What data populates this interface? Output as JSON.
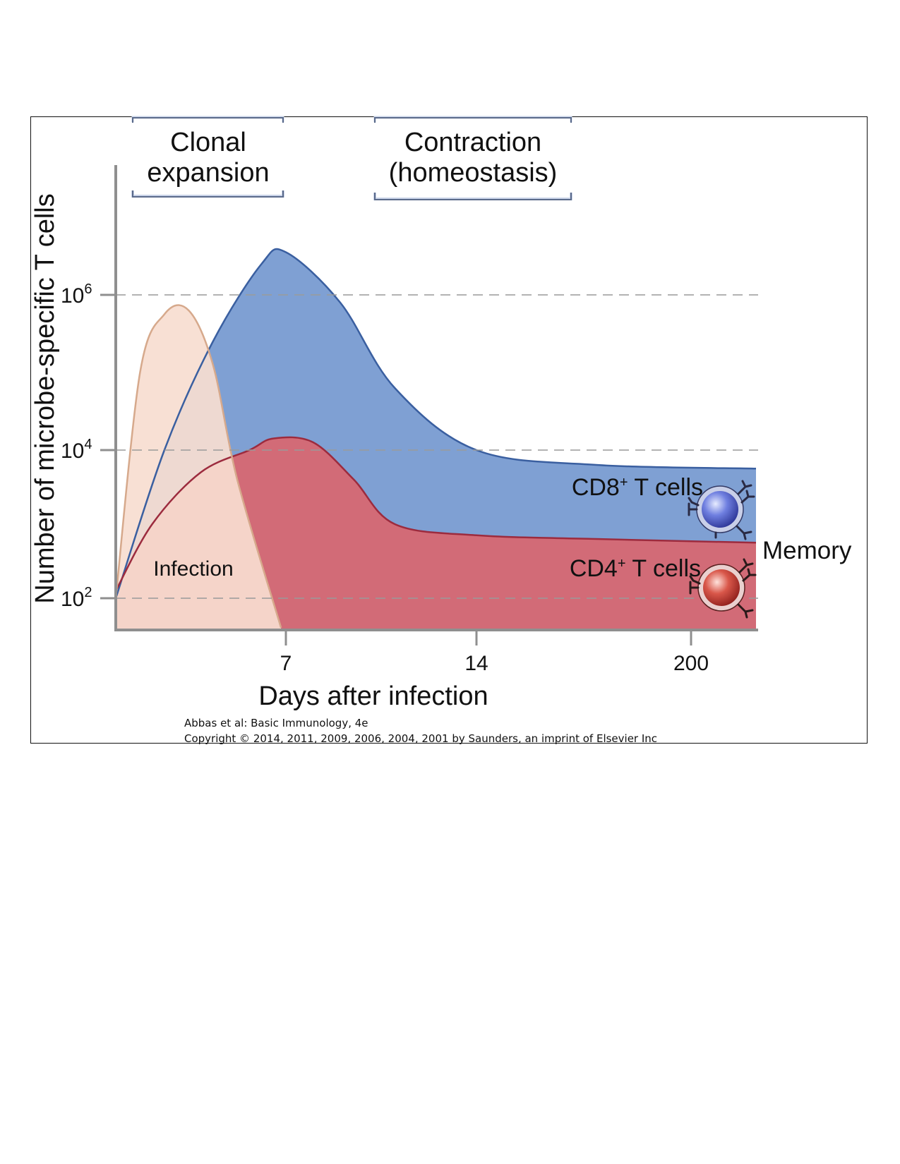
{
  "colors": {
    "cd8_fill": "#7fa0d3",
    "cd8_line": "#3a5fa0",
    "cd4_fill": "#d26b77",
    "cd4_line": "#9c2b3e",
    "infection_fill": "#f7ddd0",
    "infection_line": "#d6a98c",
    "axis": "#8f8f8f",
    "gridline": "#9a9a9a",
    "bracket": "#5a6a8a",
    "bracket_shadow": "#c9d3e8",
    "text": "#111111"
  },
  "chart_data": {
    "type": "area",
    "title": "",
    "xlabel": "Days after infection",
    "ylabel": "Number of microbe-specific T cells",
    "yscale": "log",
    "xscale": "broken (7, 14, 200 days)",
    "y_ticks": [
      {
        "value": 100,
        "base": "10",
        "exp": "2"
      },
      {
        "value": 10000,
        "base": "10",
        "exp": "4"
      },
      {
        "value": 1000000,
        "base": "10",
        "exp": "6"
      }
    ],
    "x_ticks": [
      "7",
      "14",
      "200"
    ],
    "phase_labels": [
      {
        "line1": "Clonal",
        "line2": "expansion"
      },
      {
        "line1": "Contraction",
        "line2": "(homeostasis)"
      }
    ],
    "series": [
      {
        "name": "Infection",
        "label": "Infection",
        "x_day": [
          0,
          1,
          2,
          3,
          4,
          5,
          6.8
        ],
        "log10_y": [
          2.0,
          5.0,
          5.75,
          5.8,
          5.1,
          3.6,
          1.6
        ]
      },
      {
        "name": "CD8+ T cells",
        "label_main": "CD8",
        "label_sup": "+",
        "label_rest": " T cells",
        "x_day": [
          0,
          2,
          4,
          6,
          7,
          9,
          11,
          14,
          17,
          21,
          200
        ],
        "log10_y": [
          2.0,
          4.0,
          5.4,
          6.4,
          6.55,
          5.9,
          4.8,
          4.0,
          3.8,
          3.75,
          3.7
        ]
      },
      {
        "name": "CD4+ T cells",
        "label_main": "CD4",
        "label_sup": "+",
        "label_rest": " T cells",
        "x_day": [
          0,
          1.5,
          3.5,
          5.5,
          6.5,
          8,
          9.5,
          11,
          14,
          17,
          21,
          200
        ],
        "log10_y": [
          2.1,
          3.0,
          3.7,
          4.0,
          4.15,
          4.1,
          3.6,
          3.0,
          2.85,
          2.8,
          2.75,
          2.65
        ]
      }
    ],
    "annotations": [
      "Memory"
    ],
    "grid": "dashed lines at 10^2, 10^4, 10^6"
  },
  "citation": {
    "line1": "Abbas et al: Basic Immunology, 4e",
    "line2": "Copyright © 2014, 2011, 2009, 2006, 2004, 2001 by Saunders, an imprint of Elsevier Inc"
  }
}
